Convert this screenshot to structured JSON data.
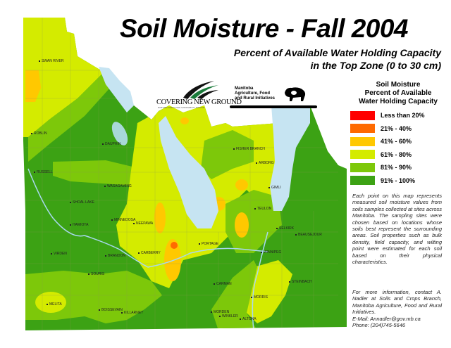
{
  "header": {
    "title": "Soil Moisture - Fall 2004",
    "subtitle_line1": "Percent of Available Water Holding Capacity",
    "subtitle_line2": "in the Top Zone (0 to 30 cm)"
  },
  "logos": {
    "covering_new_ground": "COVERING NEW GROUND",
    "covering_new_ground_small": "MANITOBA AGRICULTURAL SUSTAINABILITY INITIATIVE",
    "mafri_line1": "Manitoba",
    "mafri_line2": "Agriculture, Food",
    "mafri_line3": "and Rural Initiatives"
  },
  "legend": {
    "title_line1": "Soil Moisture",
    "title_line2": "Percent of Available",
    "title_line3": "Water Holding Capacity",
    "items": [
      {
        "label": "Less than 20%",
        "color": "#ff0000"
      },
      {
        "label": "21% - 40%",
        "color": "#ff6a00"
      },
      {
        "label": "41% - 60%",
        "color": "#ffc800"
      },
      {
        "label": "61% - 80%",
        "color": "#d4eb00"
      },
      {
        "label": "81% - 90%",
        "color": "#7dc80a"
      },
      {
        "label": "91% - 100%",
        "color": "#3ca214"
      }
    ]
  },
  "description": "Each point on this map represents measured soil moisture values from soils samples collected at sites across Manitoba. The sampling sites were chosen based on locations whose soils best represent the surrounding areas. Soil properties such as bulk density, field capacity, and wilting point were estimated for each soil based on their physical characteristics.",
  "contact": {
    "text": "For more information, contact A. Nadler at Soils and Crops Branch, Manitoba Agriculture, Food and Rural Initiatives.",
    "email": "E-Mail: Annadler@gov.mb.ca",
    "phone": "Phone: (204)745-5646"
  },
  "towns": [
    "SWAN RIVER",
    "ROBLIN",
    "DAUPHIN",
    "RUSSELL",
    "WASAGAMING",
    "SHOAL LAKE",
    "HAMIOTA",
    "MINNEDOSA",
    "NEEPAWA",
    "VIRDEN",
    "BRANDON",
    "CARBERRY",
    "SOURIS",
    "MELITA",
    "BOISSEVAIN",
    "KILLARNEY",
    "PORTAGE",
    "CARMAN",
    "MORDEN",
    "WINKLER",
    "ALTONA",
    "MORRIS",
    "STEINBACH",
    "WINNIPEG",
    "SELKIRK",
    "BEAUSEJOUR",
    "TEULON",
    "GIMLI",
    "ARBORG",
    "FISHER BRANCH"
  ]
}
